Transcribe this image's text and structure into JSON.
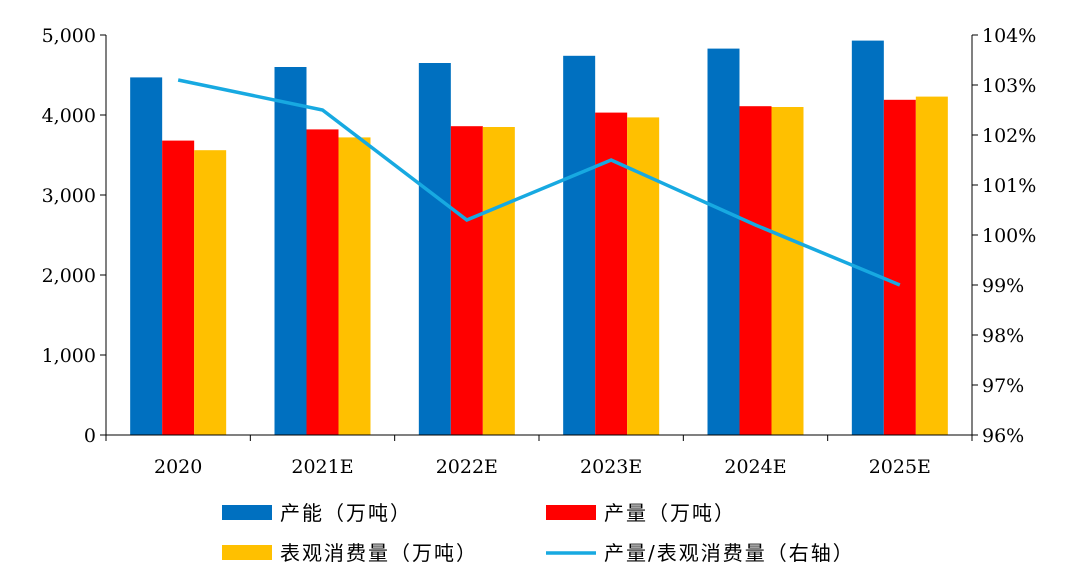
{
  "chart_data": {
    "type": "bar",
    "categories": [
      "2020",
      "2021E",
      "2022E",
      "2023E",
      "2024E",
      "2025E"
    ],
    "series": [
      {
        "name": "产能（万吨）",
        "type": "bar",
        "axis": "left",
        "color": "#0070C0",
        "values": [
          4470,
          4600,
          4650,
          4740,
          4830,
          4930
        ]
      },
      {
        "name": "产量（万吨）",
        "type": "bar",
        "axis": "left",
        "color": "#FF0000",
        "values": [
          3680,
          3820,
          3860,
          4030,
          4110,
          4190
        ]
      },
      {
        "name": "表观消费量（万吨）",
        "type": "bar",
        "axis": "left",
        "color": "#FFC000",
        "values": [
          3560,
          3720,
          3850,
          3970,
          4100,
          4230
        ]
      },
      {
        "name": "产量/表观消费量（右轴）",
        "type": "line",
        "axis": "right",
        "color": "#17A9E1",
        "values": [
          103.1,
          102.5,
          100.3,
          101.5,
          100.2,
          99.0
        ]
      }
    ],
    "left_axis": {
      "ylim": [
        0,
        5000
      ],
      "ticks": [
        "0",
        "1,000",
        "2,000",
        "3,000",
        "4,000",
        "5,000"
      ],
      "tick_values": [
        0,
        1000,
        2000,
        3000,
        4000,
        5000
      ]
    },
    "right_axis": {
      "ylim": [
        96,
        104
      ],
      "ticks": [
        "96%",
        "97%",
        "98%",
        "99%",
        "100%",
        "101%",
        "102%",
        "103%",
        "104%"
      ],
      "tick_values": [
        96,
        97,
        98,
        99,
        100,
        101,
        102,
        103,
        104
      ]
    },
    "title": "",
    "xlabel": "",
    "ylabel": "",
    "grid": false,
    "legend_position": "bottom"
  }
}
